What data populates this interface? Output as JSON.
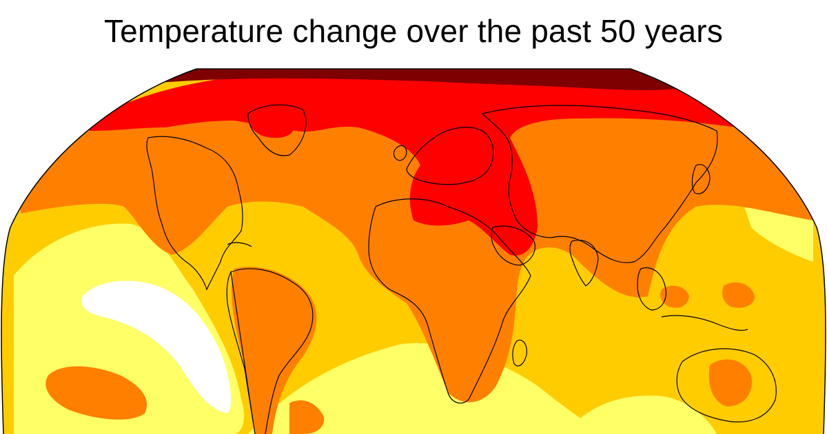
{
  "title": "Temperature change over the past 50 years",
  "map": {
    "projection": "Robinson",
    "variable": "temperature change",
    "palette": {
      "lowest": "#ffffff",
      "low": "#ffff66",
      "medium_low": "#ffcc00",
      "medium": "#ff8000",
      "high": "#ff0000",
      "highest": "#7f0000"
    },
    "coastline_color": "#000000",
    "regions": [
      {
        "name": "arctic",
        "level": "highest"
      },
      {
        "name": "northern-high-latitudes",
        "level": "high"
      },
      {
        "name": "europe-middle-east",
        "level": "high"
      },
      {
        "name": "north-america",
        "level": "medium"
      },
      {
        "name": "asia",
        "level": "medium"
      },
      {
        "name": "africa",
        "level": "medium"
      },
      {
        "name": "south-america",
        "level": "medium"
      },
      {
        "name": "tropical-oceans",
        "level": "medium_low"
      },
      {
        "name": "south-pacific",
        "level": "low"
      },
      {
        "name": "east-pacific",
        "level": "lowest"
      }
    ]
  }
}
